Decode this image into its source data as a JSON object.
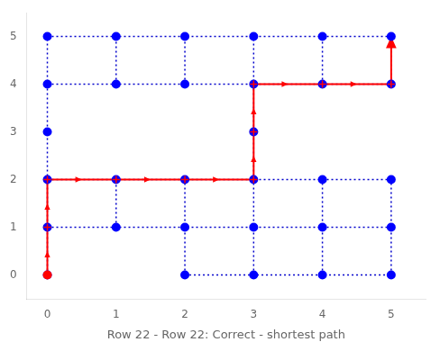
{
  "chart_data": {
    "type": "scatter",
    "xlabel": "Row 22 - Row 22: Correct - shortest path",
    "xlim": [
      -0.3,
      5.5
    ],
    "ylim": [
      -0.5,
      5.5
    ],
    "xticks": [
      0,
      1,
      2,
      3,
      4,
      5
    ],
    "yticks": [
      0,
      1,
      2,
      3,
      4,
      5
    ],
    "grid": false,
    "legend": false,
    "series": [
      {
        "type": "line",
        "line_style": "dotted",
        "color": "#0000cc",
        "x": [
          2,
          3,
          4,
          5,
          null,
          0,
          1,
          2,
          3,
          4,
          5,
          null,
          0,
          1,
          2,
          3,
          4,
          5,
          null,
          0,
          1,
          2,
          3,
          4,
          5,
          null,
          0,
          1,
          2,
          3,
          4,
          5,
          null,
          0,
          0,
          0,
          0,
          0,
          0,
          null,
          1,
          1,
          null,
          1,
          1,
          null,
          2,
          2,
          2,
          null,
          2,
          2,
          null,
          3,
          3,
          3,
          3,
          3,
          3,
          null,
          4,
          4,
          4,
          null,
          4,
          4,
          null,
          5,
          5,
          5,
          null,
          5,
          5
        ],
        "values": [
          0,
          0,
          0,
          0,
          null,
          1,
          1,
          1,
          1,
          1,
          1,
          null,
          2,
          2,
          2,
          2,
          2,
          2,
          null,
          4,
          4,
          4,
          4,
          4,
          4,
          null,
          5,
          5,
          5,
          5,
          5,
          5,
          null,
          0,
          1,
          2,
          3,
          4,
          5,
          null,
          1,
          2,
          null,
          4,
          5,
          null,
          0,
          1,
          2,
          null,
          4,
          5,
          null,
          0,
          1,
          2,
          3,
          4,
          5,
          null,
          0,
          1,
          2,
          null,
          4,
          5,
          null,
          0,
          1,
          2,
          null,
          4,
          5
        ]
      },
      {
        "type": "line",
        "line_style": "solid",
        "marker": "arrow",
        "color": "#ff0000",
        "x": [
          0,
          0,
          0,
          1,
          2,
          3,
          3,
          3,
          4,
          5,
          5
        ],
        "values": [
          0,
          1,
          2,
          2,
          2,
          2,
          3,
          4,
          4,
          4,
          5
        ]
      },
      {
        "type": "scatter",
        "marker": "circle",
        "color": "#0000ff",
        "x": [
          0,
          2,
          3,
          4,
          5,
          0,
          1,
          2,
          3,
          4,
          5,
          0,
          1,
          2,
          3,
          4,
          5,
          0,
          3,
          0,
          1,
          2,
          3,
          4,
          5,
          0,
          1,
          2,
          3,
          4,
          5
        ],
        "values": [
          0,
          0,
          0,
          0,
          0,
          1,
          1,
          1,
          1,
          1,
          1,
          2,
          2,
          2,
          2,
          2,
          2,
          3,
          3,
          4,
          4,
          4,
          4,
          4,
          4,
          5,
          5,
          5,
          5,
          5,
          5
        ]
      },
      {
        "type": "scatter",
        "marker": "circle",
        "color": "#ff0000",
        "x": [
          0
        ],
        "values": [
          0
        ]
      },
      {
        "type": "scatter",
        "marker": "plus",
        "color": "#ff0000",
        "x": [
          0,
          0,
          1,
          2,
          3,
          3,
          3,
          4,
          5
        ],
        "values": [
          1,
          2,
          2,
          2,
          2,
          3,
          4,
          4,
          4
        ]
      }
    ]
  }
}
